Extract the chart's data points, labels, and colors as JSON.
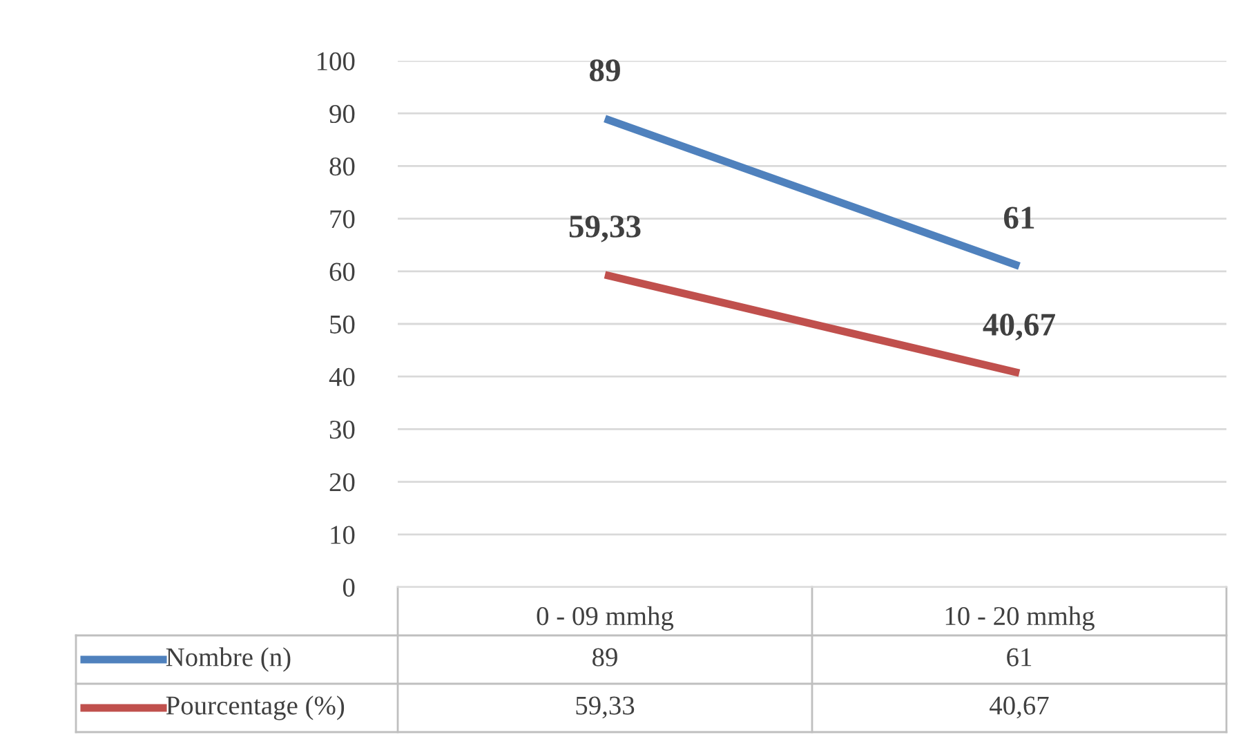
{
  "chart_data": {
    "type": "line",
    "categories": [
      "0 - 09 mmhg",
      "10 - 20 mmhg"
    ],
    "series": [
      {
        "name": "Nombre (n)",
        "color": "#4f81bd",
        "values": [
          89,
          61
        ],
        "value_labels": [
          "89",
          "61"
        ]
      },
      {
        "name": "Pourcentage (%)",
        "color": "#c0504d",
        "values": [
          59.33,
          40.67
        ],
        "value_labels": [
          "59,33",
          "40,67"
        ]
      }
    ],
    "ylim": [
      0,
      100
    ],
    "yticks": [
      0,
      10,
      20,
      30,
      40,
      50,
      60,
      70,
      80,
      90,
      100
    ],
    "grid": "y",
    "legend": "bottom",
    "marker": "none",
    "line_style": "solid"
  }
}
